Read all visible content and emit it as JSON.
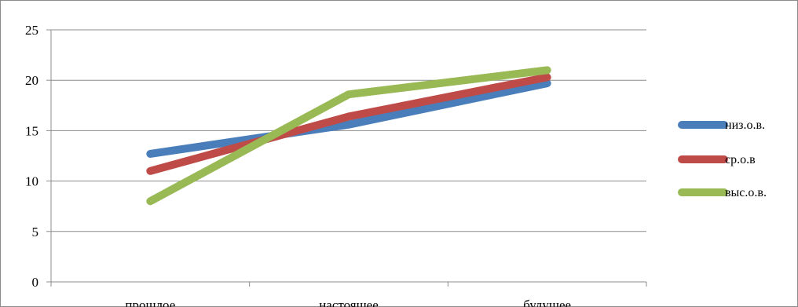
{
  "chart_data": {
    "type": "line",
    "categories": [
      "прошлое",
      "настоящее",
      "будущее"
    ],
    "series": [
      {
        "name": "низ.о.в.",
        "values": [
          12.7,
          15.6,
          19.7
        ],
        "color": "#4a7ebb"
      },
      {
        "name": "ср.о.в",
        "values": [
          11.0,
          16.4,
          20.3
        ],
        "color": "#be4b48"
      },
      {
        "name": "выс.о.в.",
        "values": [
          8.0,
          18.6,
          21.0
        ],
        "color": "#98b954"
      }
    ],
    "ylim": [
      0,
      25
    ],
    "yticks": [
      0,
      5,
      10,
      15,
      20,
      25
    ],
    "grid": true,
    "legend": "right"
  }
}
